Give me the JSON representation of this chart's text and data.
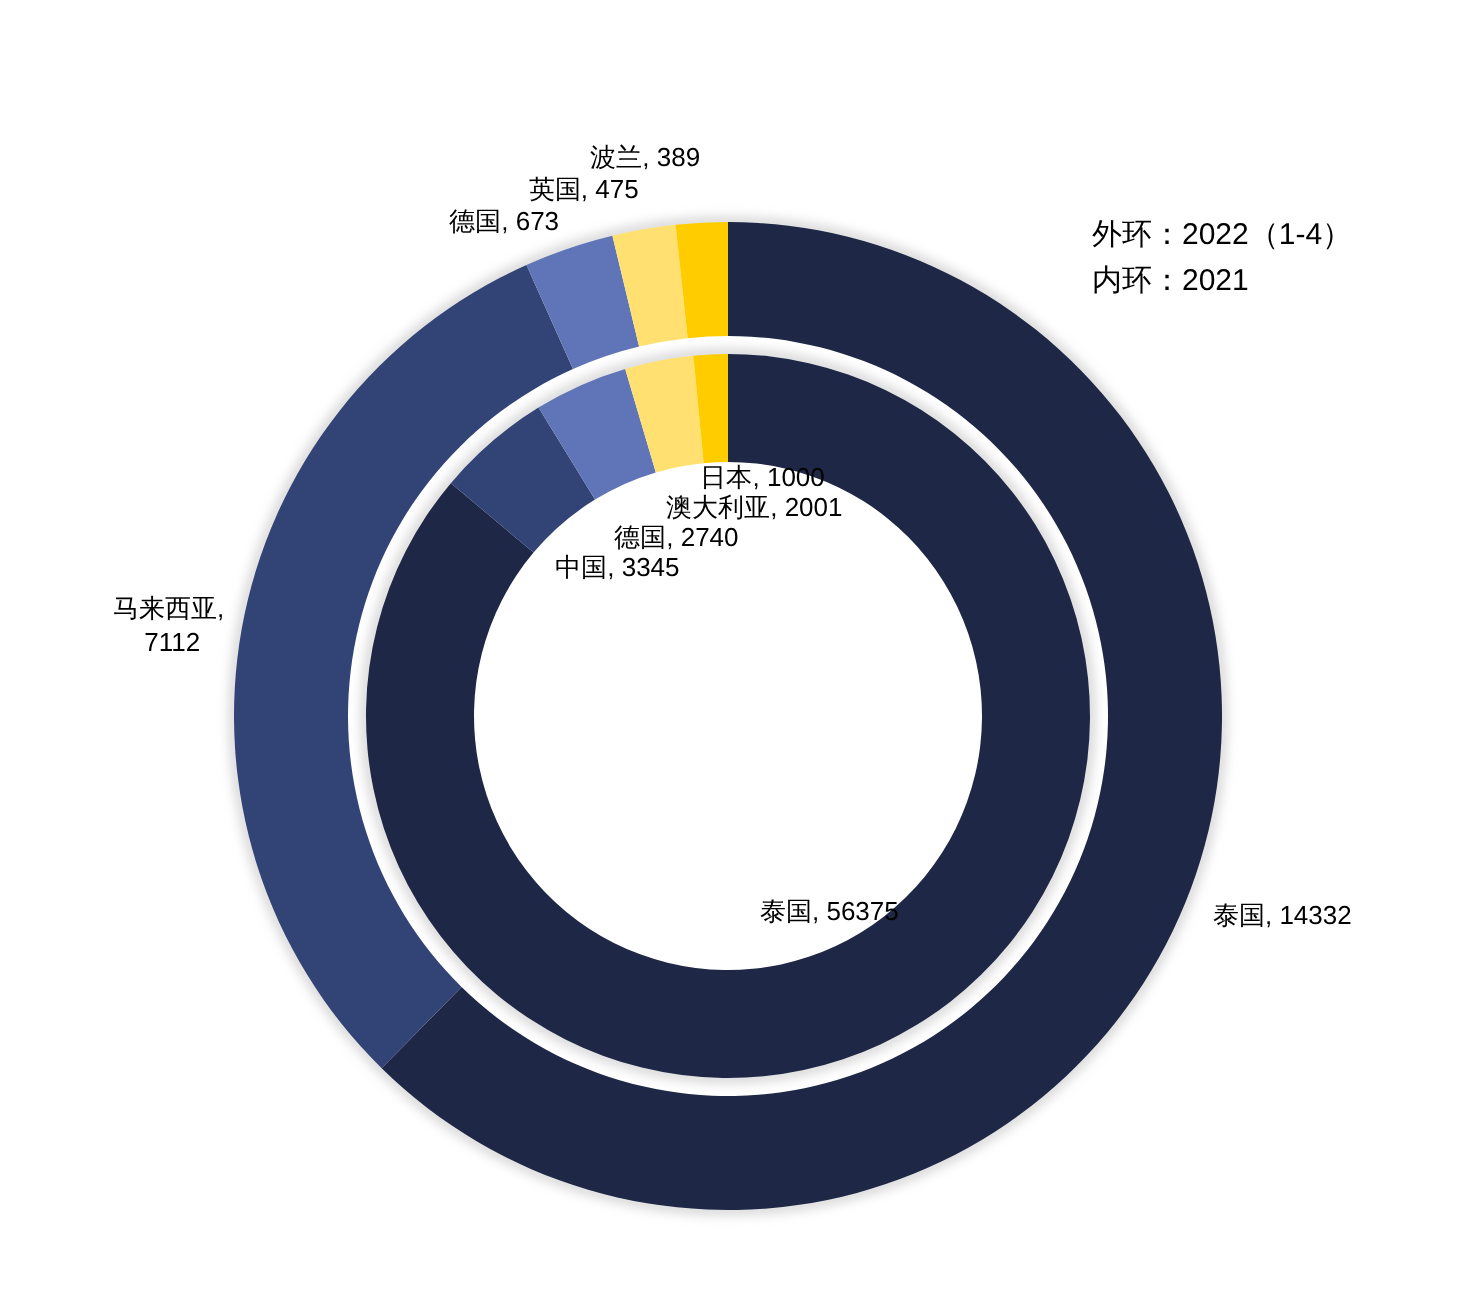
{
  "chart_data": [
    {
      "type": "donut",
      "categories": [
        "泰国",
        "马来西亚",
        "德国",
        "英国",
        "波兰"
      ],
      "values": [
        14332,
        7112,
        673,
        475,
        389
      ],
      "colors": [
        "#1e2745",
        "#324375",
        "#5f75b8",
        "#ffe070",
        "#ffcc00"
      ],
      "value_labels": [
        ", 14332",
        ", 7112",
        ", 673",
        ", 475",
        ", 389"
      ],
      "annotations": [
        "外环：2022（1-4）"
      ]
    },
    {
      "type": "donut",
      "categories": [
        "泰国",
        "中国",
        "德国",
        "澳大利亚",
        "日本"
      ],
      "values": [
        56375,
        3345,
        2740,
        2001,
        1000
      ],
      "colors": [
        "#1e2745",
        "#324375",
        "#5f75b8",
        "#ffe070",
        "#ffcc00"
      ],
      "value_labels": [
        ", 56375",
        ", 3345",
        ", 2740",
        ", 2001",
        ", 1000"
      ],
      "annotations": [
        "内环：2021"
      ]
    }
  ]
}
